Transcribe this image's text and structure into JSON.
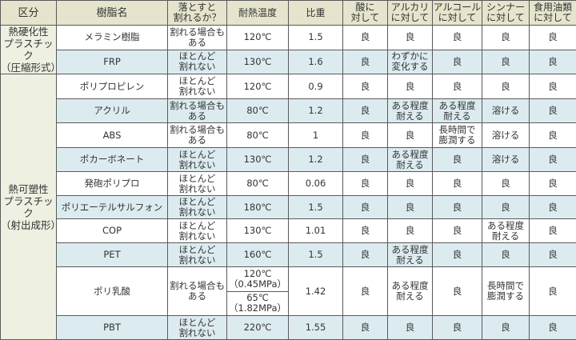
{
  "headers": [
    "区分",
    "樹脂名",
    "落とすと\n割れるか？",
    "耐熱温度",
    "比重",
    "酸に\n対して",
    "アルカリ\nに対して",
    "アルコール\nに対して",
    "シンナー\nに対して",
    "食用油類\nに対して"
  ],
  "categories": [
    {
      "label": "熱硬化性\nプラスチック\n（圧縮形式）",
      "rows": 2
    },
    {
      "label": "熱可塑性\nプラスチック\n（射出成形）",
      "rows": 10
    }
  ],
  "rows": [
    {
      "name": "メラミン樹脂",
      "drop": "割れる場合も\nある",
      "temp": "120℃",
      "sg": "1.5",
      "acid": "良",
      "alkali": "良",
      "alcohol": "良",
      "thinner": "良",
      "oil": "良"
    },
    {
      "name": "FRP",
      "drop": "ほとんど\n割れない",
      "temp": "130℃",
      "sg": "1.6",
      "acid": "良",
      "alkali": "わずかに\n変化する",
      "alcohol": "良",
      "thinner": "良",
      "oil": "良"
    },
    {
      "name": "ポリプロピレン",
      "drop": "ほとんど\n割れない",
      "temp": "120℃",
      "sg": "0.9",
      "acid": "良",
      "alkali": "良",
      "alcohol": "良",
      "thinner": "良",
      "oil": "良"
    },
    {
      "name": "アクリル",
      "drop": "割れる場合も\nある",
      "temp": "80℃",
      "sg": "1.2",
      "acid": "良",
      "alkali": "ある程度\n耐える",
      "alcohol": "ある程度\n耐える",
      "thinner": "溶ける",
      "oil": "良"
    },
    {
      "name": "ABS",
      "drop": "割れる場合も\nある",
      "temp": "80℃",
      "sg": "1",
      "acid": "良",
      "alkali": "良",
      "alcohol": "長時間で\n膨潤する",
      "thinner": "溶ける",
      "oil": "良"
    },
    {
      "name": "ポカーボネート",
      "drop": "ほとんど\n割れない",
      "temp": "130℃",
      "sg": "1.2",
      "acid": "良",
      "alkali": "ある程度\n耐える",
      "alcohol": "良",
      "thinner": "溶ける",
      "oil": "良"
    },
    {
      "name": "発砲ポリプロ",
      "drop": "ほとんど\n割れない",
      "temp": "80℃",
      "sg": "0.06",
      "acid": "良",
      "alkali": "良",
      "alcohol": "良",
      "thinner": "良",
      "oil": "良"
    },
    {
      "name": "ポリエーテルサルフォン",
      "drop": "ほとんど\n割れない",
      "temp": "180℃",
      "sg": "1.5",
      "acid": "良",
      "alkali": "良",
      "alcohol": "良",
      "thinner": "良",
      "oil": "良"
    },
    {
      "name": "COP",
      "drop": "ほとんど\n割れない",
      "temp": "130℃",
      "sg": "1.01",
      "acid": "良",
      "alkali": "良",
      "alcohol": "良",
      "thinner": "ある程度\n耐える",
      "oil": "良"
    },
    {
      "name": "PET",
      "drop": "ほとんど\n割れない",
      "temp": "160℃",
      "sg": "1.5",
      "acid": "良",
      "alkali": "ある程度\n耐える",
      "alcohol": "良",
      "thinner": "良",
      "oil": "良"
    },
    {
      "name": "ポリ乳酸",
      "drop": "割れる場合も\nある",
      "temp": [
        "120℃\n（0.45MPa）",
        "65℃\n（1.82MPa）"
      ],
      "sg": "1.42",
      "acid": "良",
      "alkali": "ある程度\n耐える",
      "alcohol": "良",
      "thinner": "長時間で\n膨潤する",
      "oil": "良"
    },
    {
      "name": "PBT",
      "drop": "ほとんど\n割れない",
      "temp": "220℃",
      "sg": "1.55",
      "acid": "良",
      "alkali": "良",
      "alcohol": "良",
      "thinner": "良",
      "oil": "良"
    }
  ]
}
